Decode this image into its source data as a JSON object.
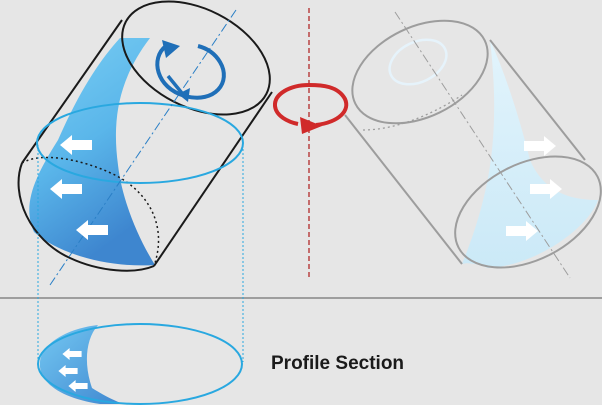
{
  "labels": {
    "profile_section": "Profile Section"
  },
  "colors": {
    "background": "#e6e6e6",
    "black_outline": "#1a1a1a",
    "blue_fill_light": "#6fc6ee",
    "blue_fill_dark": "#3e86cf",
    "blue_outline": "#29a8e0",
    "dark_blue_arrow": "#1f6fb8",
    "red_rotation": "#d02a2a",
    "red_axis": "#b22a2a",
    "gray_outline": "#9d9d9d",
    "ghost_fill": "#d6eef9",
    "separator": "#555555"
  },
  "icons": {
    "rotation_blue": "counterclockwise-rotation-arrow-icon",
    "rotation_red": "rotation-arrow-icon",
    "flow_arrow": "left-arrow-icon",
    "flow_arrow_right": "right-arrow-icon"
  }
}
